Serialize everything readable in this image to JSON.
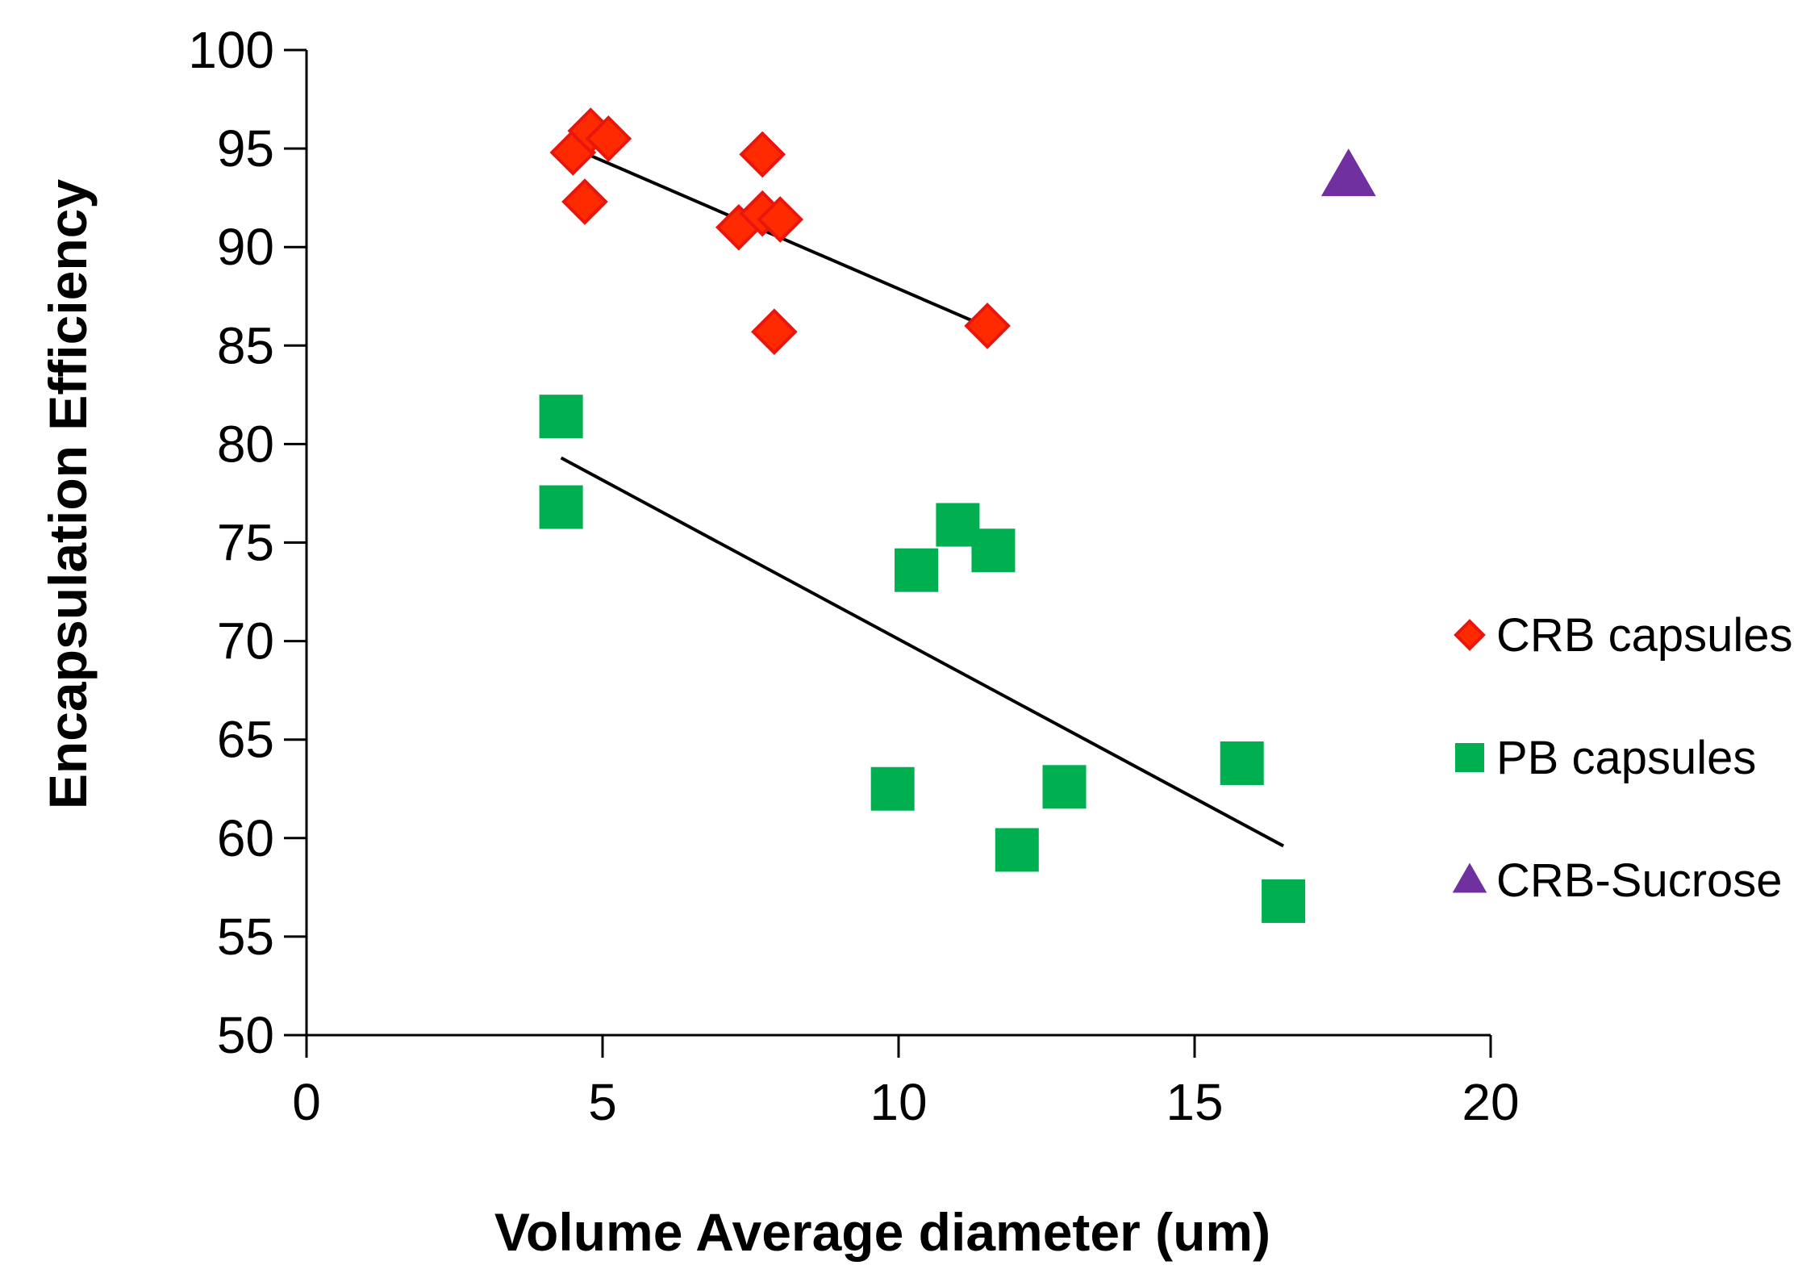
{
  "chart_data": {
    "type": "scatter",
    "title": "",
    "xlabel": "Volume Average diameter (um)",
    "ylabel": "Encapsulation Efficiency",
    "xlim": [
      0,
      20
    ],
    "ylim": [
      50,
      100
    ],
    "xticks": [
      0,
      5,
      10,
      15,
      20
    ],
    "yticks": [
      50,
      55,
      60,
      65,
      70,
      75,
      80,
      85,
      90,
      95,
      100
    ],
    "xtick_labels": [
      "0",
      "5",
      "10",
      "15",
      "20"
    ],
    "ytick_labels": [
      "50",
      "55",
      "60",
      "65",
      "70",
      "75",
      "80",
      "85",
      "90",
      "95",
      "100"
    ],
    "grid": false,
    "legend_position": "right",
    "series": [
      {
        "name": "CRB capsules",
        "marker": "diamond",
        "color": "#FF2A00",
        "edge_color": "#E8160C",
        "points": [
          {
            "x": 4.5,
            "y": 94.8
          },
          {
            "x": 4.8,
            "y": 95.9
          },
          {
            "x": 5.1,
            "y": 95.5
          },
          {
            "x": 4.7,
            "y": 92.3
          },
          {
            "x": 7.7,
            "y": 94.7
          },
          {
            "x": 7.3,
            "y": 91.0
          },
          {
            "x": 7.7,
            "y": 91.7
          },
          {
            "x": 8.0,
            "y": 91.4
          },
          {
            "x": 7.9,
            "y": 85.7
          },
          {
            "x": 11.5,
            "y": 86.0
          }
        ],
        "trendline": {
          "x": [
            4.6,
            11.6
          ],
          "y": [
            94.9,
            85.8
          ],
          "color": "#000000"
        }
      },
      {
        "name": "PB capsules",
        "marker": "square",
        "color": "#00B050",
        "edge_color": "#00B050",
        "points": [
          {
            "x": 4.3,
            "y": 81.4
          },
          {
            "x": 4.3,
            "y": 76.8
          },
          {
            "x": 11.0,
            "y": 75.9
          },
          {
            "x": 11.6,
            "y": 74.6
          },
          {
            "x": 10.3,
            "y": 73.6
          },
          {
            "x": 9.9,
            "y": 62.5
          },
          {
            "x": 12.8,
            "y": 62.6
          },
          {
            "x": 12.0,
            "y": 59.4
          },
          {
            "x": 15.8,
            "y": 63.8
          },
          {
            "x": 16.5,
            "y": 56.8
          }
        ],
        "trendline": {
          "x": [
            4.3,
            16.5
          ],
          "y": [
            79.3,
            59.6
          ],
          "color": "#000000"
        }
      },
      {
        "name": "CRB-Sucrose",
        "marker": "triangle",
        "color": "#7030A0",
        "edge_color": "#7030A0",
        "points": [
          {
            "x": 17.6,
            "y": 93.6
          }
        ]
      }
    ]
  }
}
